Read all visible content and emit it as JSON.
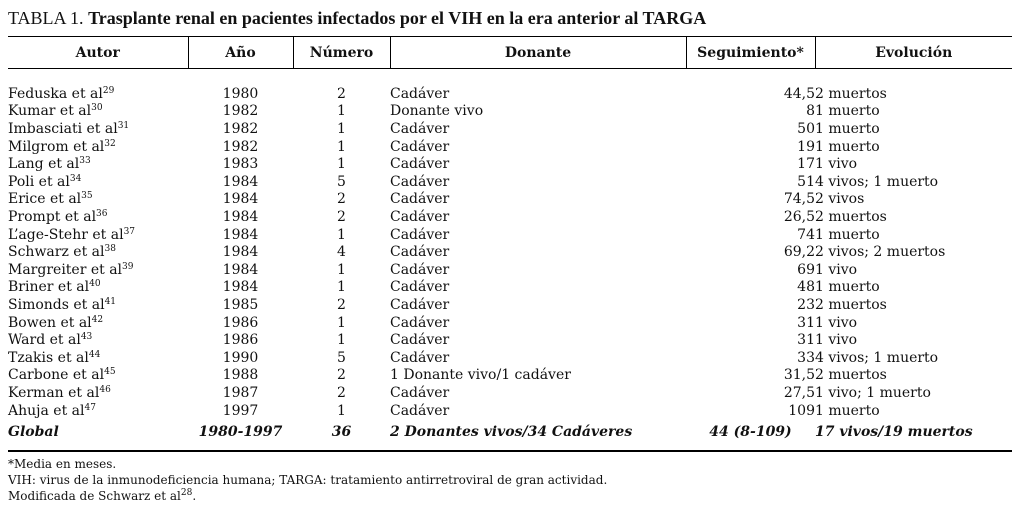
{
  "title": {
    "label": "TABLA 1.",
    "text": "Trasplante renal en pacientes infectados por el VIH en la era anterior al TARGA"
  },
  "headers": [
    "Autor",
    "Año",
    "Número",
    "Donante",
    "Seguimiento*",
    "Evolución"
  ],
  "rows": [
    {
      "author": "Feduska et al",
      "ref": "29",
      "year": "1980",
      "number": "2",
      "donor": "Cadáver",
      "followup": "44,5",
      "outcome": "2 muertos"
    },
    {
      "author": "Kumar et al",
      "ref": "30",
      "year": "1982",
      "number": "1",
      "donor": "Donante vivo",
      "followup": "8",
      "outcome": "1 muerto"
    },
    {
      "author": "Imbasciati et al",
      "ref": "31",
      "year": "1982",
      "number": "1",
      "donor": "Cadáver",
      "followup": "50",
      "outcome": "1 muerto"
    },
    {
      "author": "Milgrom et al",
      "ref": "32",
      "year": "1982",
      "number": "1",
      "donor": "Cadáver",
      "followup": "19",
      "outcome": "1 muerto"
    },
    {
      "author": "Lang et al",
      "ref": "33",
      "year": "1983",
      "number": "1",
      "donor": "Cadáver",
      "followup": "17",
      "outcome": "1 vivo"
    },
    {
      "author": "Poli et al",
      "ref": "34",
      "year": "1984",
      "number": "5",
      "donor": "Cadáver",
      "followup": "51",
      "outcome": "4 vivos; 1 muerto"
    },
    {
      "author": "Erice et al",
      "ref": "35",
      "year": "1984",
      "number": "2",
      "donor": "Cadáver",
      "followup": "74,5",
      "outcome": "2 vivos"
    },
    {
      "author": "Prompt et al",
      "ref": "36",
      "year": "1984",
      "number": "2",
      "donor": "Cadáver",
      "followup": "26,5",
      "outcome": "2 muertos"
    },
    {
      "author": "L’age-Stehr et al",
      "ref": "37",
      "year": "1984",
      "number": "1",
      "donor": "Cadáver",
      "followup": "74",
      "outcome": "1 muerto"
    },
    {
      "author": "Schwarz et al",
      "ref": "38",
      "year": "1984",
      "number": "4",
      "donor": "Cadáver",
      "followup": "69,2",
      "outcome": "2 vivos; 2 muertos"
    },
    {
      "author": "Margreiter et al",
      "ref": "39",
      "year": "1984",
      "number": "1",
      "donor": "Cadáver",
      "followup": "69",
      "outcome": "1 vivo"
    },
    {
      "author": "Briner et al",
      "ref": "40",
      "year": "1984",
      "number": "1",
      "donor": "Cadáver",
      "followup": "48",
      "outcome": "1 muerto"
    },
    {
      "author": "Simonds et al",
      "ref": "41",
      "year": "1985",
      "number": "2",
      "donor": "Cadáver",
      "followup": "23",
      "outcome": "2 muertos"
    },
    {
      "author": "Bowen et al",
      "ref": "42",
      "year": "1986",
      "number": "1",
      "donor": "Cadáver",
      "followup": "31",
      "outcome": "1 vivo"
    },
    {
      "author": "Ward et al",
      "ref": "43",
      "year": "1986",
      "number": "1",
      "donor": "Cadáver",
      "followup": "31",
      "outcome": "1 vivo"
    },
    {
      "author": "Tzakis et al",
      "ref": "44",
      "year": "1990",
      "number": "5",
      "donor": "Cadáver",
      "followup": "33",
      "outcome": "4 vivos; 1 muerto"
    },
    {
      "author": "Carbone et al",
      "ref": "45",
      "year": "1988",
      "number": "2",
      "donor": "1 Donante vivo/1 cadáver",
      "followup": "31,5",
      "outcome": "2 muertos"
    },
    {
      "author": "Kerman et al",
      "ref": "46",
      "year": "1987",
      "number": "2",
      "donor": "Cadáver",
      "followup": "27,5",
      "outcome": "1 vivo; 1 muerto"
    },
    {
      "author": "Ahuja et al",
      "ref": "47",
      "year": "1997",
      "number": "1",
      "donor": "Cadáver",
      "followup": "109",
      "outcome": "1 muerto"
    }
  ],
  "total": {
    "label": "Global",
    "year": "1980-1997",
    "number": "36",
    "donor": "2 Donantes vivos/34 Cadáveres",
    "followup": "44 (8-109)",
    "outcome": "17 vivos/19 muertos"
  },
  "footnotes": {
    "n1": "*Media en meses.",
    "n2": "VIH: virus de la inmunodeficiencia humana; TARGA: tratamiento antirretroviral de gran actividad.",
    "n3_text": "Modificada de Schwarz et al",
    "n3_ref": "28",
    "n3_end": "."
  }
}
